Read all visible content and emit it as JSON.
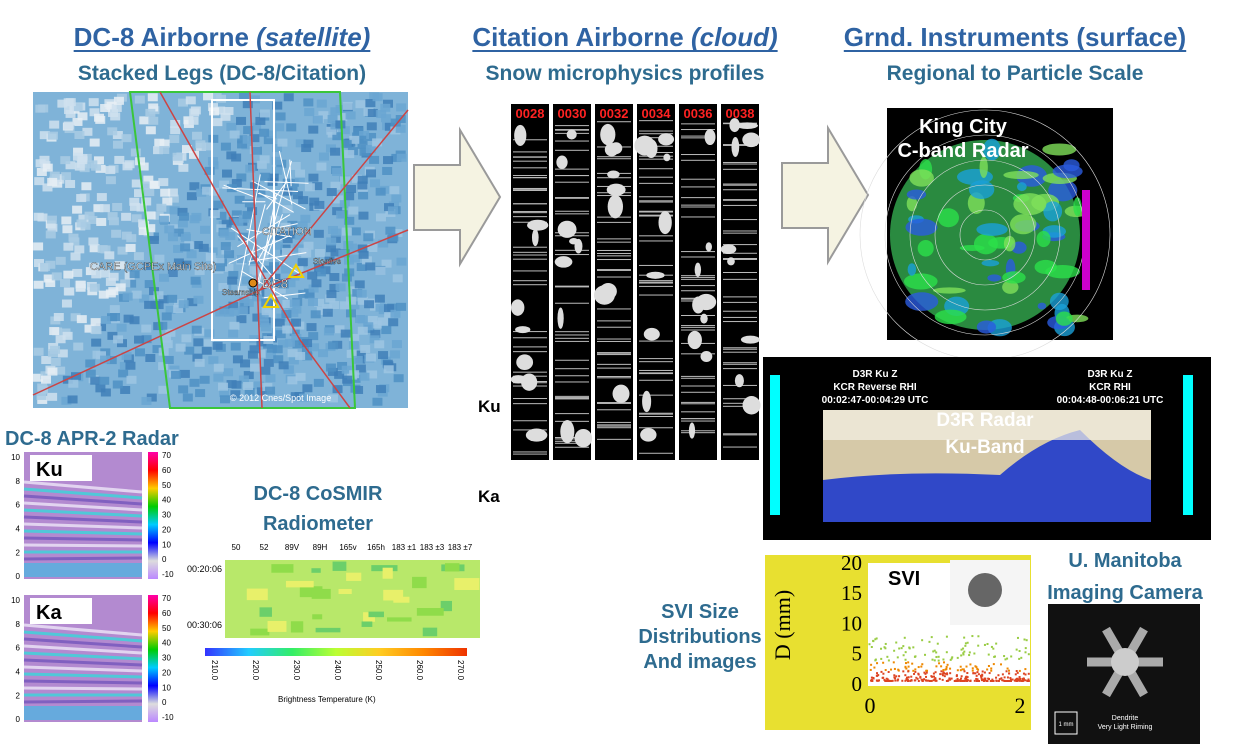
{
  "columns": [
    {
      "title": "DC-8 Airborne",
      "title_em": "(satellite)",
      "subtitle": "Stacked Legs (DC-8/Citation)"
    },
    {
      "title": "Citation Airborne",
      "title_em": "(cloud)",
      "subtitle": "Snow microphysics profiles"
    },
    {
      "title": "Grnd. Instruments (surface)",
      "subtitle": "Regional to Particle Scale"
    }
  ],
  "map": {
    "labels": [
      "CITATION",
      "CARE (GCPEx Main Site)",
      "DC8",
      "Steamship",
      "Skydive"
    ],
    "credit": "© 2012 Cnes/Spot Image"
  },
  "apr2": {
    "title": "DC-8 APR-2 Radar",
    "panels": [
      {
        "band": "Ku",
        "yticks": [
          10,
          8,
          6,
          4,
          2,
          0
        ],
        "colorbar": [
          "70",
          "60",
          "50",
          "40",
          "30",
          "20",
          "10",
          "0",
          "-10"
        ]
      },
      {
        "band": "Ka",
        "yticks": [
          10,
          8,
          6,
          4,
          2,
          0
        ],
        "colorbar": [
          "70",
          "60",
          "50",
          "40",
          "30",
          "20",
          "10",
          "0",
          "-10"
        ]
      }
    ]
  },
  "cosmir": {
    "title": [
      "DC-8 CoSMIR",
      "Radiometer"
    ],
    "channels": [
      "50",
      "52",
      "89V",
      "89H",
      "165v",
      "165h",
      "183 ±1",
      "183 ±3",
      "183 ±7"
    ],
    "times": [
      "00:20:06",
      "00:30:06"
    ],
    "colorbar": [
      "210.0",
      "220.0",
      "230.0",
      "240.0",
      "250.0",
      "260.0",
      "270.0"
    ],
    "colorbar_label": "Brightness Temperature (K)"
  },
  "citation": {
    "strips": [
      "0028",
      "0030",
      "0032",
      "0034",
      "0036",
      "0038"
    ],
    "side_labels": [
      "Ku",
      "Ka"
    ]
  },
  "king_city": {
    "label": [
      "King City",
      "C-band Radar"
    ]
  },
  "d3r": {
    "label": [
      "D3R Radar",
      "Ku-Band"
    ],
    "left": [
      "D3R Ku Z",
      "KCR Reverse RHI",
      "00:02:47-00:04:29 UTC"
    ],
    "right": [
      "D3R Ku Z",
      "KCR RHI",
      "00:04:48-00:06:21 UTC"
    ]
  },
  "svi": {
    "caption": [
      "SVI Size",
      "Distributions",
      "And images"
    ],
    "tag": "SVI",
    "ylabel": "D (mm)",
    "yticks": [
      0,
      5,
      10,
      15,
      20
    ],
    "xticks": [
      0,
      2
    ]
  },
  "manitoba": {
    "caption": [
      "U. Manitoba",
      "Imaging Camera"
    ],
    "scale": "1 mm",
    "notes": [
      "Dendrite",
      "Very Light Riming"
    ]
  }
}
